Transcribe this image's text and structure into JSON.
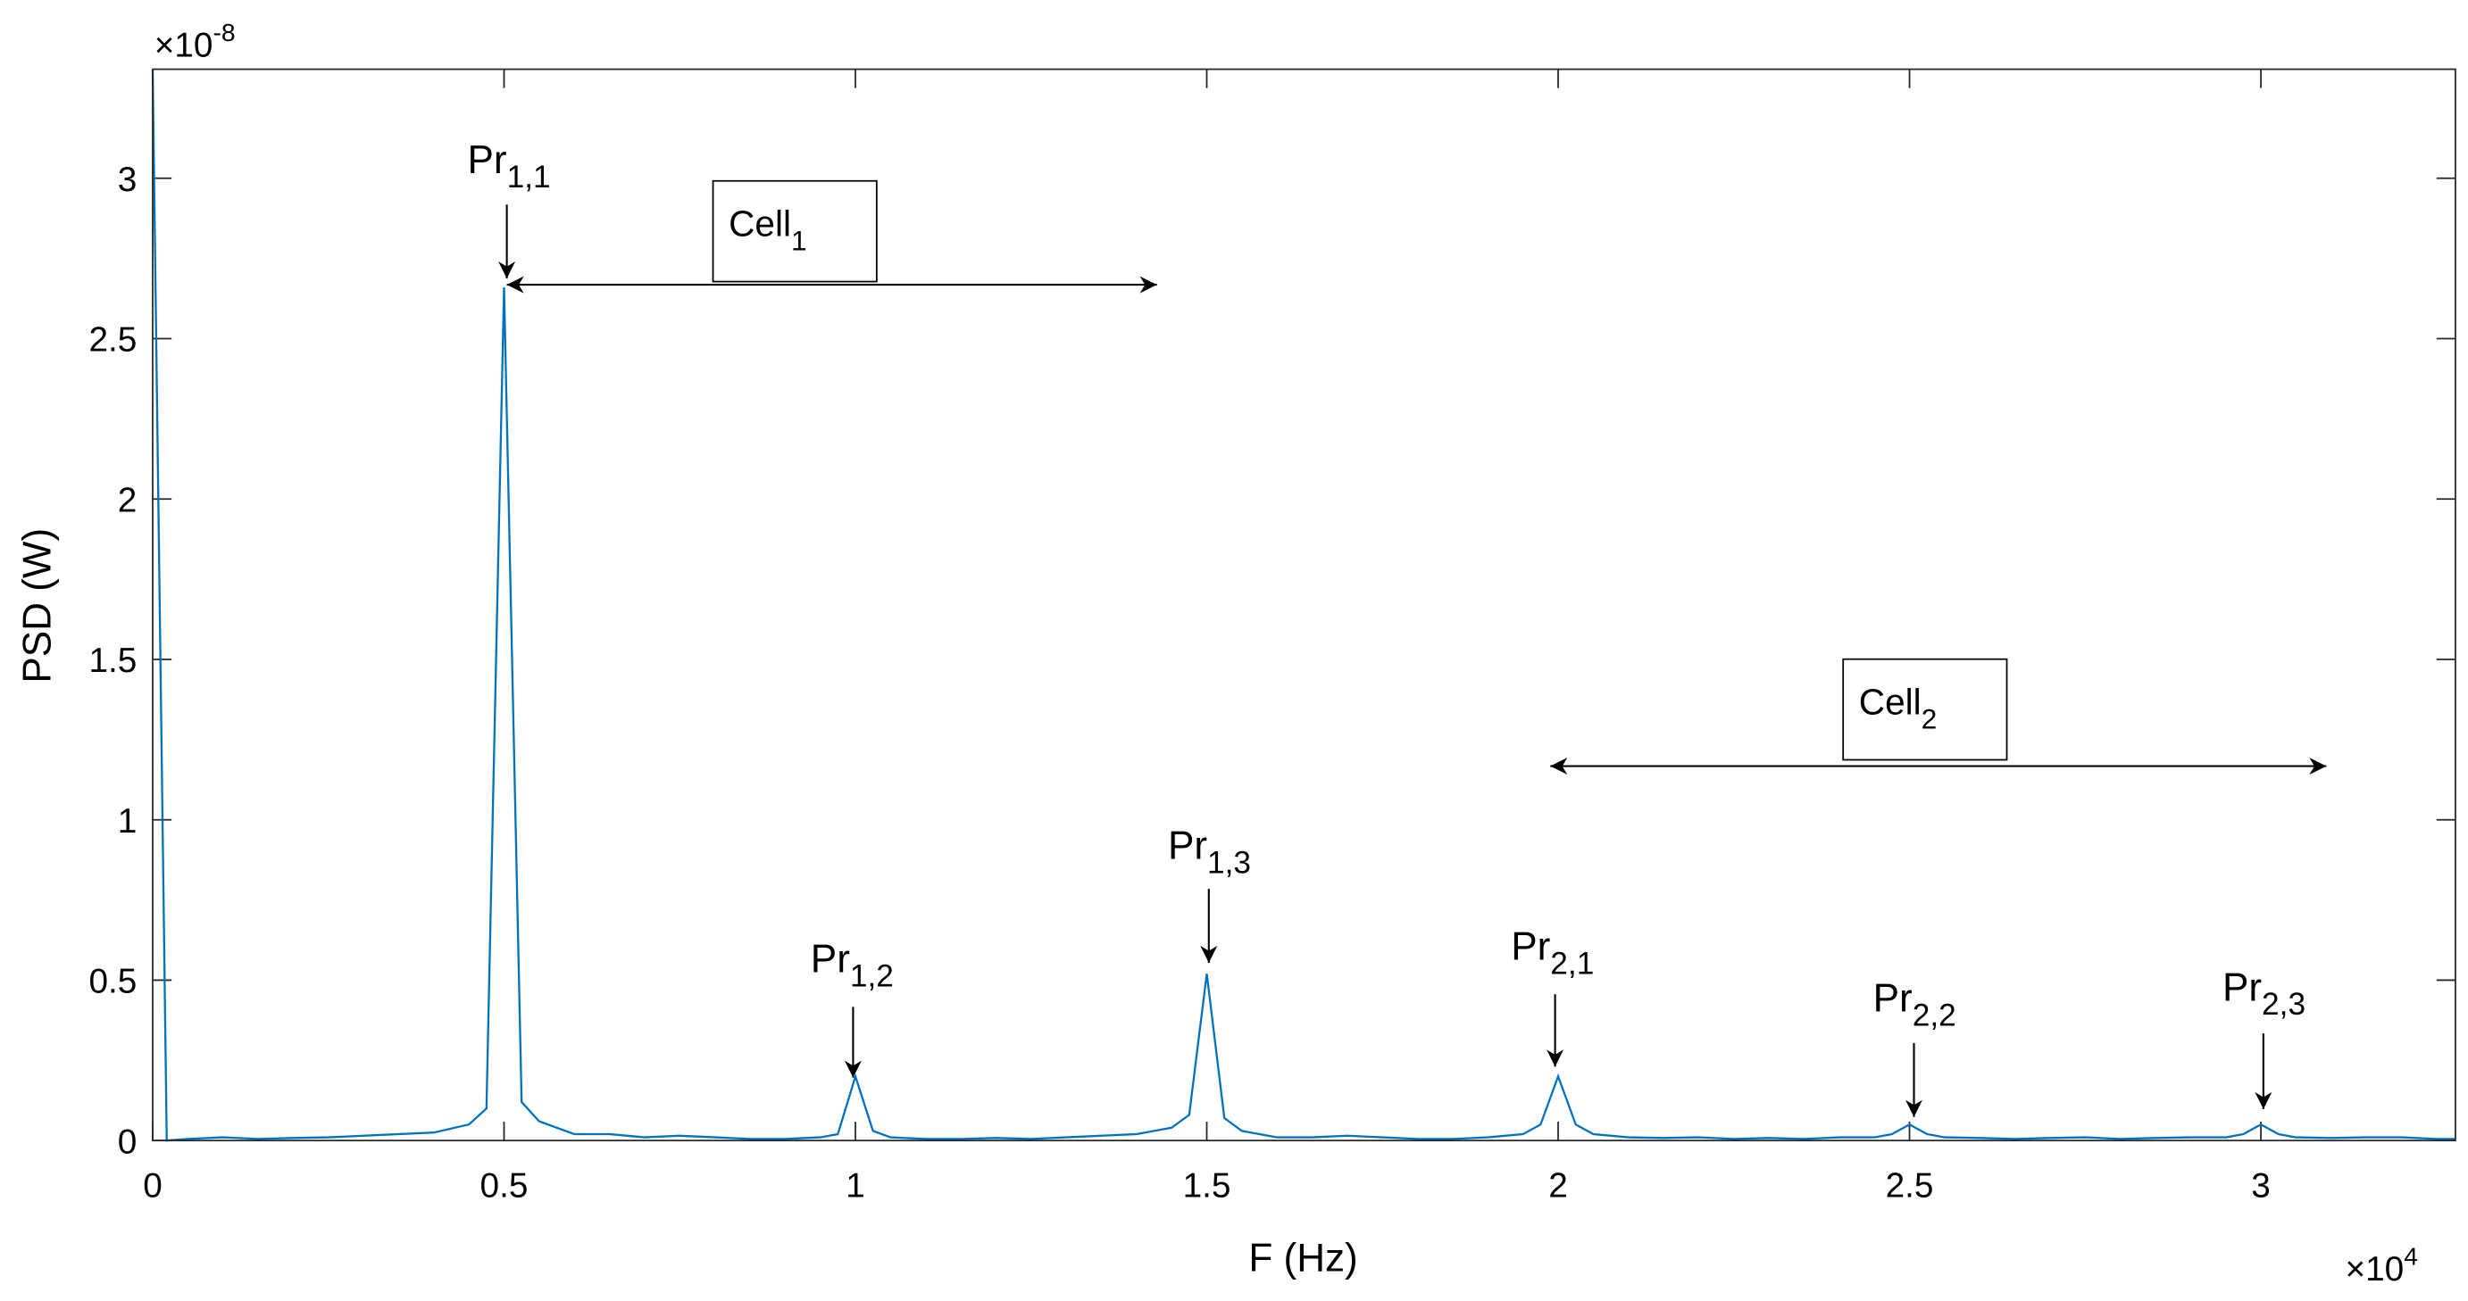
{
  "chart_data": {
    "type": "line",
    "x_label": "F (Hz)",
    "y_label": "PSD (W)",
    "x_exponent": {
      "base": "×10",
      "power": "4"
    },
    "y_exponent": {
      "base": "×10",
      "power": "-8"
    },
    "x": [
      0,
      0.02,
      0.05,
      0.1,
      0.15,
      0.2,
      0.25,
      0.3,
      0.35,
      0.4,
      0.45,
      0.475,
      0.5,
      0.525,
      0.55,
      0.6,
      0.65,
      0.7,
      0.75,
      0.8,
      0.85,
      0.9,
      0.95,
      0.975,
      1.0,
      1.025,
      1.05,
      1.1,
      1.15,
      1.2,
      1.25,
      1.3,
      1.35,
      1.4,
      1.45,
      1.475,
      1.5,
      1.525,
      1.55,
      1.6,
      1.65,
      1.7,
      1.75,
      1.8,
      1.85,
      1.9,
      1.95,
      1.975,
      2.0,
      2.025,
      2.05,
      2.1,
      2.15,
      2.2,
      2.25,
      2.3,
      2.35,
      2.4,
      2.45,
      2.475,
      2.5,
      2.525,
      2.55,
      2.6,
      2.65,
      2.7,
      2.75,
      2.8,
      2.85,
      2.9,
      2.95,
      2.975,
      3.0,
      3.025,
      3.05,
      3.1,
      3.15,
      3.2,
      3.25,
      3.2768
    ],
    "values": [
      3.34,
      0,
      0.005,
      0.01,
      0.005,
      0.008,
      0.01,
      0.015,
      0.02,
      0.025,
      0.05,
      0.1,
      2.66,
      0.12,
      0.06,
      0.02,
      0.02,
      0.01,
      0.015,
      0.01,
      0.005,
      0.005,
      0.01,
      0.02,
      0.2,
      0.03,
      0.01,
      0.005,
      0.005,
      0.008,
      0.005,
      0.01,
      0.015,
      0.02,
      0.04,
      0.08,
      0.52,
      0.07,
      0.03,
      0.01,
      0.01,
      0.015,
      0.01,
      0.005,
      0.005,
      0.01,
      0.02,
      0.05,
      0.2,
      0.05,
      0.02,
      0.01,
      0.008,
      0.01,
      0.005,
      0.008,
      0.005,
      0.01,
      0.01,
      0.02,
      0.05,
      0.02,
      0.01,
      0.008,
      0.005,
      0.008,
      0.01,
      0.005,
      0.008,
      0.01,
      0.01,
      0.02,
      0.05,
      0.02,
      0.01,
      0.008,
      0.01,
      0.01,
      0.005,
      0.005
    ],
    "color": "#0072bd",
    "xlim": [
      0,
      3.2768
    ],
    "xticks": [
      0,
      0.5,
      1,
      1.5,
      2,
      2.5,
      3
    ],
    "ylim": [
      0,
      3.34
    ],
    "yticks": [
      0,
      0.5,
      1,
      1.5,
      2,
      2.5,
      3
    ],
    "annotations": [
      {
        "text": "Pr",
        "sub": "1,1"
      },
      {
        "text": "Pr",
        "sub": "1,2"
      },
      {
        "text": "Pr",
        "sub": "1,3"
      },
      {
        "text": "Pr",
        "sub": "2,1"
      },
      {
        "text": "Pr",
        "sub": "2,2"
      },
      {
        "text": "Pr",
        "sub": "2,3"
      }
    ],
    "cells": [
      {
        "text": "Cell",
        "sub": "1"
      },
      {
        "text": "Cell",
        "sub": "2"
      }
    ]
  }
}
